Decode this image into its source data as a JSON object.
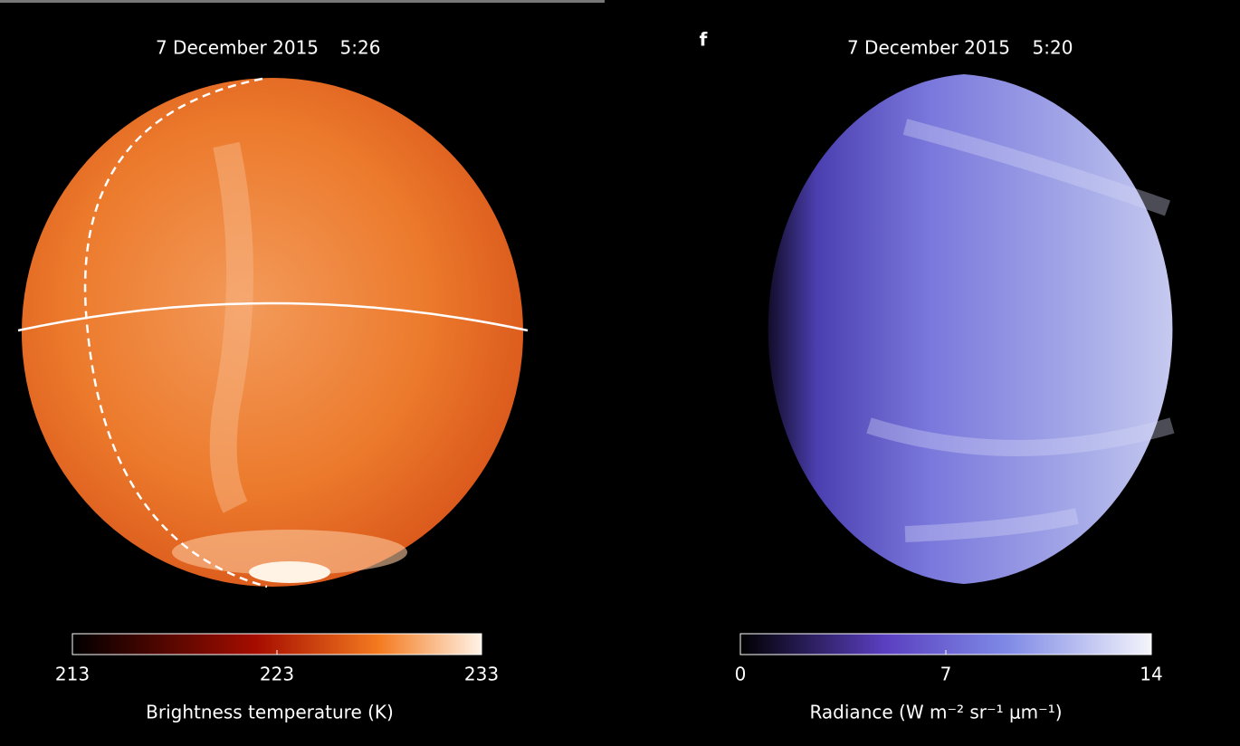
{
  "panels": [
    {
      "date": "7 December 2015",
      "time": "5:26",
      "colorbar": {
        "ticks": [
          213,
          223,
          233
        ],
        "label": "Brightness temperature (K)"
      }
    },
    {
      "letter": "f",
      "date": "7 December 2015",
      "time": "5:20",
      "colorbar": {
        "ticks": [
          0,
          7,
          14
        ],
        "label": "Radiance (W m⁻² sr⁻¹ μm⁻¹)"
      }
    }
  ]
}
